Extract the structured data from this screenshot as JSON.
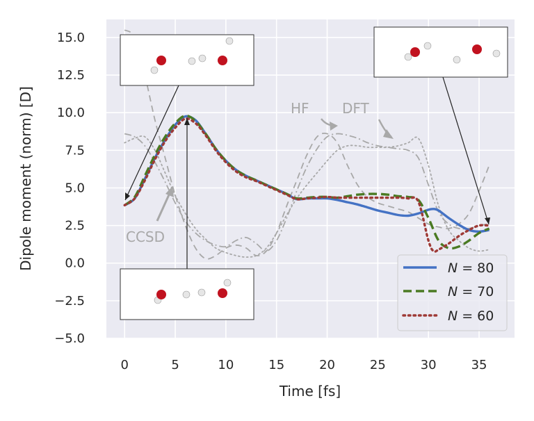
{
  "chart_data": {
    "type": "line",
    "xlabel": "Time [fs]",
    "ylabel": "Dipole moment (norm) [D]",
    "xlim": [
      -1.8,
      38.5
    ],
    "ylim": [
      -5.0,
      16.2
    ],
    "xticks": [
      0,
      5,
      10,
      15,
      20,
      25,
      30,
      35
    ],
    "xtick_labels": [
      "0",
      "5",
      "10",
      "15",
      "20",
      "25",
      "30",
      "35"
    ],
    "yticks": [
      -5.0,
      -2.5,
      0.0,
      2.5,
      5.0,
      7.5,
      10.0,
      12.5,
      15.0
    ],
    "ytick_labels": [
      "−5.0",
      "−2.5",
      "0.0",
      "2.5",
      "5.0",
      "7.5",
      "10.0",
      "12.5",
      "15.0"
    ],
    "grid": true,
    "legend_position": "lower-right",
    "series": [
      {
        "name": "N = 80",
        "legend_var": "N",
        "legend_val": "= 80",
        "color": "#4472c4",
        "style": "solid",
        "x": [
          0,
          1,
          2,
          3,
          4,
          5,
          6,
          7,
          8,
          9,
          10,
          11,
          12,
          13,
          14,
          15,
          16,
          17,
          18,
          19,
          20,
          21,
          22,
          23,
          24,
          25,
          26,
          27,
          28,
          29,
          30,
          30.5,
          31,
          32,
          33,
          34,
          35,
          36
        ],
        "y": [
          3.85,
          4.3,
          5.6,
          7.0,
          8.2,
          9.2,
          9.75,
          9.5,
          8.6,
          7.6,
          6.8,
          6.2,
          5.8,
          5.5,
          5.2,
          4.9,
          4.6,
          4.25,
          4.3,
          4.3,
          4.3,
          4.2,
          4.05,
          3.9,
          3.7,
          3.5,
          3.35,
          3.2,
          3.15,
          3.3,
          3.55,
          3.6,
          3.5,
          3.0,
          2.55,
          2.2,
          2.1,
          2.2
        ]
      },
      {
        "name": "N = 70",
        "legend_var": "N",
        "legend_val": "= 70",
        "color": "#4a7a22",
        "style": "dashed",
        "x": [
          0,
          1,
          2,
          3,
          4,
          5,
          6,
          7,
          8,
          9,
          10,
          11,
          12,
          13,
          14,
          15,
          16,
          17,
          18,
          19,
          20,
          21,
          22,
          23,
          24,
          25,
          26,
          27,
          28,
          29,
          30,
          31,
          32,
          33,
          34,
          35,
          36
        ],
        "y": [
          3.85,
          4.4,
          5.8,
          7.2,
          8.4,
          9.3,
          9.8,
          9.45,
          8.6,
          7.6,
          6.8,
          6.2,
          5.8,
          5.5,
          5.2,
          4.9,
          4.6,
          4.3,
          4.35,
          4.4,
          4.4,
          4.35,
          4.45,
          4.55,
          4.6,
          4.6,
          4.55,
          4.45,
          4.4,
          4.2,
          3.0,
          1.5,
          1.0,
          1.1,
          1.5,
          2.0,
          2.3
        ]
      },
      {
        "name": "N = 60",
        "legend_var": "N",
        "legend_val": "= 60",
        "color": "#9e3a36",
        "style": "dotted",
        "x": [
          0,
          1,
          2,
          3,
          4,
          5,
          6,
          7,
          8,
          9,
          10,
          11,
          12,
          13,
          14,
          15,
          16,
          17,
          18,
          19,
          20,
          21,
          22,
          23,
          24,
          25,
          26,
          27,
          28,
          29,
          30,
          30.5,
          31,
          32,
          33,
          34,
          35,
          36
        ],
        "y": [
          3.85,
          4.3,
          5.5,
          6.9,
          8.1,
          9.0,
          9.6,
          9.3,
          8.5,
          7.5,
          6.7,
          6.1,
          5.7,
          5.45,
          5.15,
          4.85,
          4.55,
          4.25,
          4.3,
          4.35,
          4.4,
          4.35,
          4.35,
          4.35,
          4.35,
          4.35,
          4.35,
          4.35,
          4.3,
          4.1,
          1.5,
          0.8,
          0.9,
          1.3,
          1.8,
          2.2,
          2.5,
          2.5
        ]
      },
      {
        "name": "HF",
        "color": "#a8a8a8",
        "style": "loosedash",
        "x": [
          0,
          1,
          2,
          3,
          4,
          5,
          6,
          7,
          8,
          9,
          10,
          11,
          12,
          13,
          14,
          15,
          16,
          17,
          18,
          19,
          20,
          21,
          22,
          23,
          24,
          25,
          26,
          27,
          28,
          29,
          30,
          31,
          32,
          33,
          34,
          35,
          36
        ],
        "y": [
          15.5,
          15.0,
          12.5,
          9.5,
          7.0,
          4.5,
          2.5,
          1.0,
          0.3,
          0.5,
          1.0,
          1.2,
          1.0,
          0.5,
          0.8,
          2.0,
          3.8,
          5.5,
          7.2,
          8.4,
          8.6,
          8.0,
          6.5,
          5.2,
          4.4,
          4.0,
          3.8,
          3.6,
          3.4,
          3.0,
          2.6,
          2.4,
          2.3,
          2.6,
          3.3,
          4.8,
          6.5
        ]
      },
      {
        "name": "DFT",
        "color": "#a8a8a8",
        "style": "dashdot",
        "x": [
          0,
          1,
          2,
          3,
          4,
          5,
          6,
          7,
          8,
          9,
          10,
          11,
          12,
          13,
          14,
          15,
          16,
          17,
          18,
          19,
          20,
          21,
          22,
          23,
          24,
          25,
          26,
          27,
          28,
          29,
          30,
          31,
          32,
          33,
          34,
          35,
          36
        ],
        "y": [
          8.6,
          8.4,
          7.8,
          6.7,
          5.4,
          4.0,
          2.8,
          2.0,
          1.5,
          1.2,
          1.1,
          1.5,
          1.7,
          1.3,
          0.8,
          1.5,
          3.0,
          4.8,
          6.4,
          7.6,
          8.4,
          8.6,
          8.5,
          8.3,
          8.0,
          7.8,
          7.7,
          7.6,
          7.5,
          7.0,
          5.2,
          3.4,
          2.6,
          2.3,
          2.3,
          2.5,
          2.6
        ]
      },
      {
        "name": "CCSD",
        "color": "#a8a8a8",
        "style": "dotted",
        "x": [
          0,
          1,
          2,
          3,
          4,
          5,
          6,
          7,
          8,
          9,
          10,
          11,
          12,
          13,
          14,
          15,
          16,
          17,
          18,
          19,
          20,
          21,
          22,
          23,
          24,
          25,
          26,
          27,
          28,
          29,
          30,
          31,
          32,
          33,
          34,
          35,
          36
        ],
        "y": [
          8.0,
          8.3,
          8.4,
          7.5,
          6.0,
          4.5,
          3.3,
          2.3,
          1.6,
          1.0,
          0.7,
          0.5,
          0.4,
          0.5,
          1.0,
          2.0,
          3.2,
          4.3,
          5.2,
          6.0,
          6.8,
          7.5,
          7.8,
          7.8,
          7.7,
          7.7,
          7.7,
          7.8,
          8.0,
          8.3,
          6.5,
          3.8,
          2.2,
          1.5,
          1.0,
          0.8,
          0.9
        ]
      }
    ],
    "annotations": {
      "hf": "HF",
      "dft": "DFT",
      "ccsd": "CCSD"
    }
  }
}
